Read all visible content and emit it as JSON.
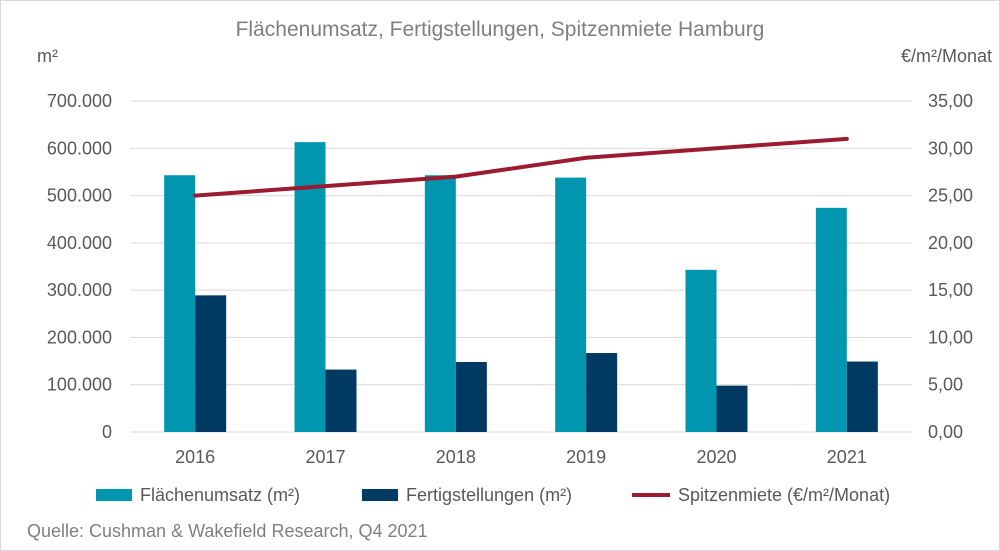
{
  "chart_data": {
    "type": "bar",
    "title": "Flächenumsatz, Fertigstellungen, Spitzenmiete Hamburg",
    "left_unit": "m²",
    "right_unit": "€/m²/Monat",
    "categories": [
      "2016",
      "2017",
      "2018",
      "2019",
      "2020",
      "2021"
    ],
    "left_axis": {
      "ylim": [
        0,
        700000
      ],
      "ticks": [
        0,
        100000,
        200000,
        300000,
        400000,
        500000,
        600000,
        700000
      ],
      "tick_labels": [
        "0",
        "100.000",
        "200.000",
        "300.000",
        "400.000",
        "500.000",
        "600.000",
        "700.000"
      ]
    },
    "right_axis": {
      "ylim": [
        0,
        35
      ],
      "ticks": [
        0,
        5,
        10,
        15,
        20,
        25,
        30,
        35
      ],
      "tick_labels": [
        "0,00",
        "5,00",
        "10,00",
        "15,00",
        "20,00",
        "25,00",
        "30,00",
        "35,00"
      ]
    },
    "series": [
      {
        "name": "Flächenumsatz (m²)",
        "type": "bar",
        "axis": "left",
        "color": "#0096b0",
        "values": [
          543000,
          613000,
          543000,
          538000,
          343000,
          474000
        ]
      },
      {
        "name": "Fertigstellungen (m²)",
        "type": "bar",
        "axis": "left",
        "color": "#003a63",
        "values": [
          289000,
          132000,
          148000,
          167000,
          98000,
          149000
        ]
      },
      {
        "name": "Spitzenmiete (€/m²/Monat)",
        "type": "line",
        "axis": "right",
        "color": "#9b1b30",
        "values": [
          25.0,
          26.0,
          27.0,
          29.0,
          30.0,
          31.0
        ]
      }
    ],
    "grid": true,
    "legend_position": "bottom"
  },
  "source": "Quelle: Cushman & Wakefield Research, Q4 2021"
}
